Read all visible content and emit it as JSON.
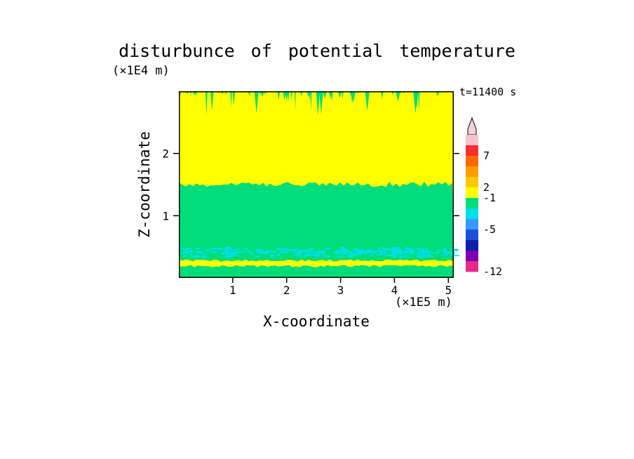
{
  "title": "disturbunce of potential temperature",
  "time_label": "t=11400 s",
  "axes": {
    "x_label": "X-coordinate",
    "x_unit": "(×1E5 m)",
    "z_label": "Z-coordinate",
    "z_unit": "(×1E4 m)"
  },
  "colorbar": {
    "arrow_color": "#f7d0da",
    "segments": [
      "#f6c2ce",
      "#f53030",
      "#ff6a00",
      "#ff9e00",
      "#ffc800",
      "#ffff00",
      "#00dd7a",
      "#00e0e6",
      "#3399ff",
      "#1d4fd6",
      "#0b1fa8",
      "#7d00b0",
      "#e4298f"
    ],
    "labels": [
      {
        "text": "7",
        "boundary": 2
      },
      {
        "text": "2",
        "boundary": 5
      },
      {
        "text": "-1",
        "boundary": 6
      },
      {
        "text": "-5",
        "boundary": 9
      },
      {
        "text": "-12",
        "boundary": 13
      }
    ]
  },
  "chart_data": {
    "type": "heatmap",
    "title": "disturbunce of potential temperature",
    "xlabel": "X-coordinate",
    "x_unit": "(×1E5 m)",
    "ylabel": "Z-coordinate",
    "y_unit": "(×1E4 m)",
    "time_label": "t=11400 s",
    "xlim": [
      0,
      5.1
    ],
    "zlim": [
      0,
      3.0
    ],
    "x_ticks": [
      1,
      2,
      3,
      4,
      5
    ],
    "z_ticks": [
      1,
      2
    ],
    "labeled_levels": [
      -12,
      -5,
      -1,
      2,
      7
    ],
    "field_colors": {
      "yellow": "#ffff00",
      "green": "#00dd7a",
      "cyan": "#00e0e6"
    },
    "regions": [
      {
        "name": "upper-layer",
        "color": "yellow",
        "value_range": [
          -1,
          2
        ],
        "z_from": 1.5,
        "z_to": 3.0,
        "note": "jagged green streaks hang from the top boundary down to about z=2.6"
      },
      {
        "name": "middle-layer",
        "color": "green",
        "z_from": 0.5,
        "z_to": 1.5
      },
      {
        "name": "speckle-band",
        "color": "cyan",
        "z_from": 0.35,
        "z_to": 0.5,
        "pattern": "broken speckles over green"
      },
      {
        "name": "lower-green",
        "color": "green",
        "z_from": 0.28,
        "z_to": 0.35
      },
      {
        "name": "thin-yellow-strip",
        "color": "yellow",
        "z_from": 0.19,
        "z_to": 0.28
      },
      {
        "name": "bottom-green",
        "color": "green",
        "z_from": 0.0,
        "z_to": 0.19
      }
    ]
  }
}
